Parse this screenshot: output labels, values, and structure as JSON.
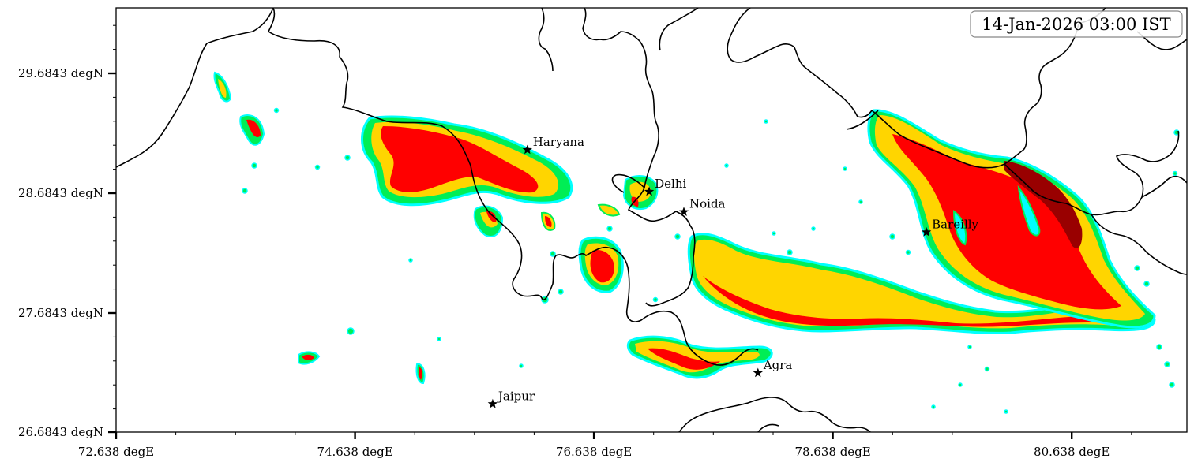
{
  "timestamp": "14-Jan-2026 03:00 IST",
  "axes": {
    "x_ticks": [
      "72.638 degE",
      "74.638 degE",
      "76.638 degE",
      "78.638 degE",
      "80.638 degE"
    ],
    "y_ticks": [
      "29.6843 degN",
      "28.6843 degN",
      "27.6843 degN",
      "26.6843 degN"
    ],
    "x_range": [
      72.638,
      81.6
    ],
    "y_range": [
      26.6843,
      30.24
    ]
  },
  "cities": [
    {
      "name": "Haryana",
      "lon": 76.08,
      "lat": 29.05
    },
    {
      "name": "Delhi",
      "lon": 77.1,
      "lat": 28.7
    },
    {
      "name": "Noida",
      "lon": 77.39,
      "lat": 28.53
    },
    {
      "name": "Bareilly",
      "lon": 79.42,
      "lat": 28.36
    },
    {
      "name": "Agra",
      "lon": 78.01,
      "lat": 27.18
    },
    {
      "name": "Jaipur",
      "lon": 75.79,
      "lat": 26.92
    }
  ],
  "colors": {
    "level1": "#00ffff",
    "level2": "#00ee55",
    "level3": "#ffd500",
    "level4": "#ff0000",
    "level5": "#990000",
    "border": "#000000",
    "background": "#ffffff"
  }
}
